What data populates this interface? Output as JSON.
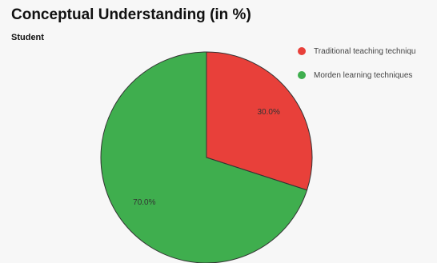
{
  "chart_data": {
    "type": "pie",
    "title": "Conceptual Understanding (in %)",
    "subtitle": "Student",
    "legend_position": "top-right",
    "slices": [
      {
        "label": "Traditional teaching techniqu",
        "value": 30.0,
        "display": "30.0%",
        "color": "#e8403a"
      },
      {
        "label": "Morden learning techniques",
        "value": 70.0,
        "display": "70.0%",
        "color": "#3fae4e"
      }
    ]
  }
}
